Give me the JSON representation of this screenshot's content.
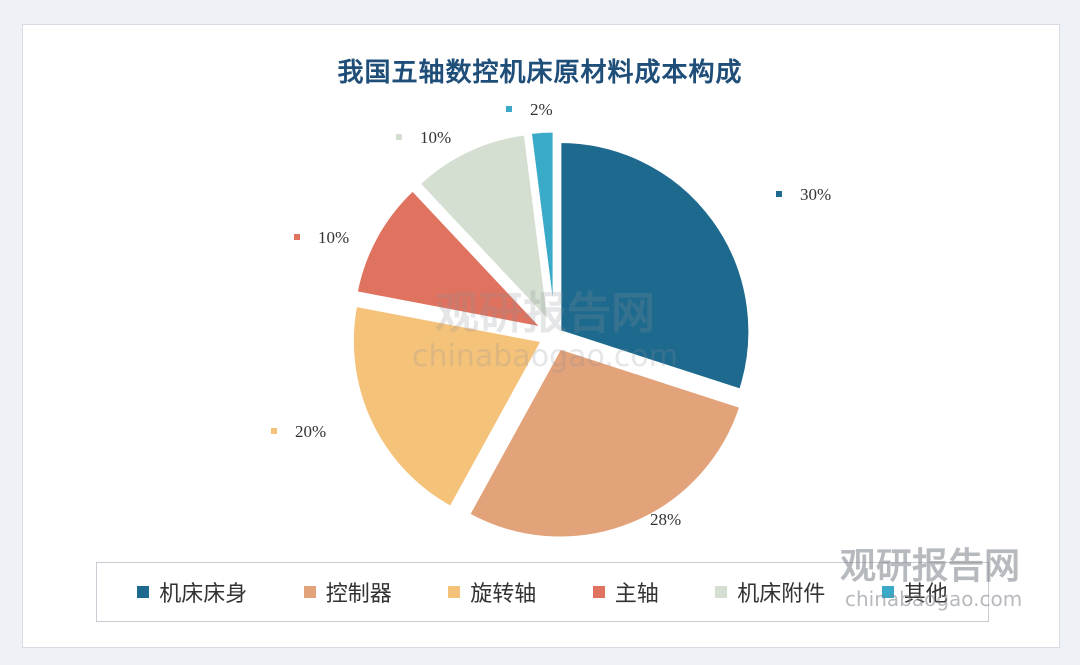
{
  "chart_data": {
    "type": "pie",
    "title": "我国五轴数控机床原材料成本构成",
    "slices": [
      {
        "name": "机床床身",
        "value": 30,
        "label": "30%",
        "color": "#1d6a8e"
      },
      {
        "name": "控制器",
        "value": 28,
        "label": "28%",
        "color": "#e2a27a"
      },
      {
        "name": "旋转轴",
        "value": 20,
        "label": "20%",
        "color": "#f5c27a"
      },
      {
        "name": "主轴",
        "value": 10,
        "label": "10%",
        "color": "#e07360"
      },
      {
        "name": "机床附件",
        "value": 10,
        "label": "10%",
        "color": "#d4dfd2"
      },
      {
        "name": "其他",
        "value": 2,
        "label": "2%",
        "color": "#3aaac9"
      }
    ],
    "legend_position": "bottom"
  },
  "watermark": {
    "brand": "观研报告网",
    "domain": "chinabaogao.com"
  }
}
